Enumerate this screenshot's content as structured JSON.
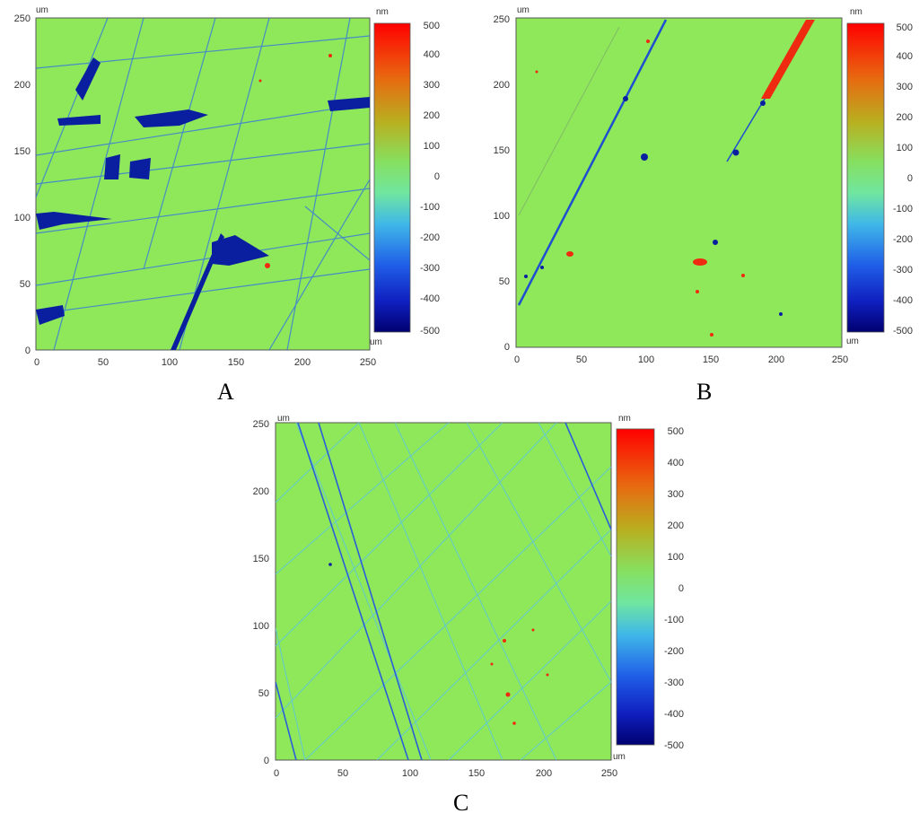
{
  "panels": [
    {
      "id": "A",
      "caption": "A",
      "axis_unit": "um",
      "x_ticks": [
        "0",
        "50",
        "100",
        "150",
        "200",
        "250"
      ],
      "y_ticks": [
        "0",
        "50",
        "100",
        "150",
        "200",
        "250"
      ],
      "colorbar": {
        "unit_top": "nm",
        "unit_bottom": "um",
        "ticks": [
          "500",
          "400",
          "300",
          "200",
          "100",
          "0",
          "-100",
          "-200",
          "-300",
          "-400",
          "-500"
        ]
      }
    },
    {
      "id": "B",
      "caption": "B",
      "axis_unit": "um",
      "x_ticks": [
        "0",
        "50",
        "100",
        "150",
        "200",
        "250"
      ],
      "y_ticks": [
        "0",
        "50",
        "100",
        "150",
        "200",
        "250"
      ],
      "colorbar": {
        "unit_top": "nm",
        "unit_bottom": "um",
        "ticks": [
          "500",
          "400",
          "300",
          "200",
          "100",
          "0",
          "-100",
          "-200",
          "-300",
          "-400",
          "-500"
        ]
      }
    },
    {
      "id": "C",
      "caption": "C",
      "axis_unit": "um",
      "x_ticks": [
        "0",
        "50",
        "100",
        "150",
        "200",
        "250"
      ],
      "y_ticks": [
        "0",
        "50",
        "100",
        "150",
        "200",
        "250"
      ],
      "colorbar": {
        "unit_top": "nm",
        "unit_bottom": "um",
        "ticks": [
          "500",
          "400",
          "300",
          "200",
          "100",
          "0",
          "-100",
          "-200",
          "-300",
          "-400",
          "-500"
        ]
      }
    }
  ],
  "colors": {
    "surface": "#8ee85a",
    "scratch": "#1e5fe0",
    "deep": "#0a1fa0",
    "peak": "#ee2a10"
  }
}
